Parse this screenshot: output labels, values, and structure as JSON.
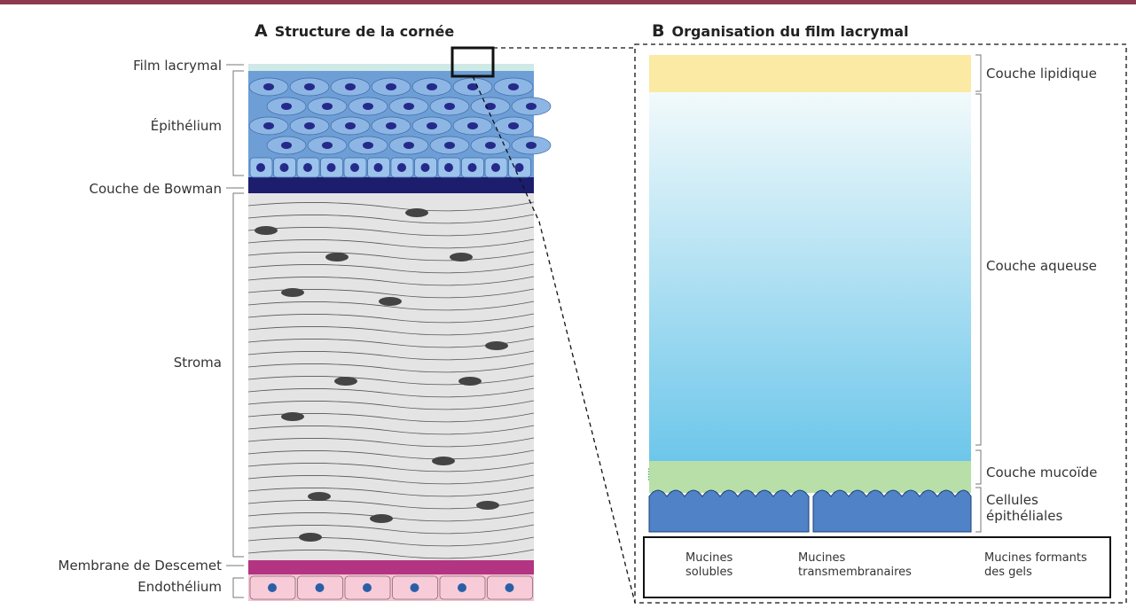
{
  "panel_a": {
    "letter": "A",
    "title": "Structure de la cornée",
    "layers": [
      "Film lacrymal",
      "Épithélium",
      "Couche de Bowman",
      "Stroma",
      "Membrane de Descemet",
      "Endothélium"
    ]
  },
  "panel_b": {
    "letter": "B",
    "title": "Organisation du film lacrymal",
    "layers": [
      "Couche lipidique",
      "Couche aqueuse",
      "Couche mucoïde",
      "Cellules épithéliales"
    ],
    "legend": [
      "Mucines solubles",
      "Mucines transmembranaires",
      "Mucines formants des gels"
    ]
  }
}
